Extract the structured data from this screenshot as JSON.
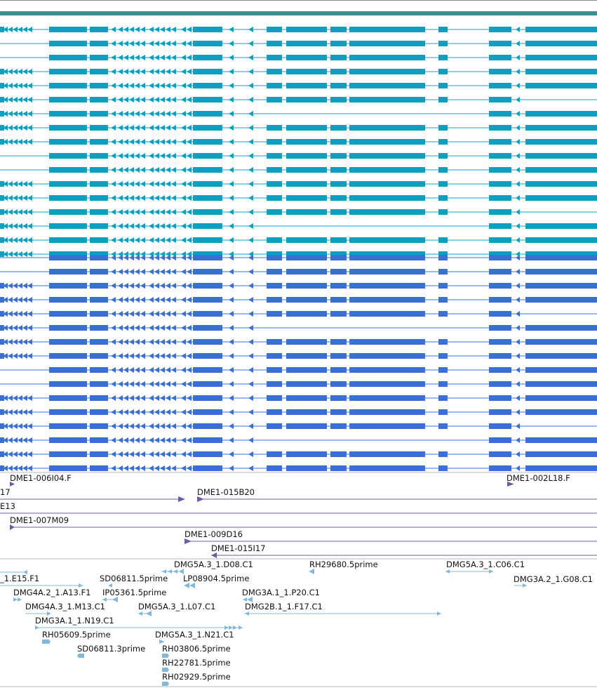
{
  "colors": {
    "top_bar": "#3d8f8f",
    "transcript_group_1": "#0aa0c0",
    "transcript_group_2": "#3a6fd4",
    "clone": "#7057b0",
    "est": "#82b8dc",
    "divider": "#b8b8b8"
  },
  "transcripts": {
    "group1_count": 17,
    "group2_count": 16
  },
  "clones": [
    {
      "label": "DME1-006I04.F"
    },
    {
      "label": "DME1-002L18.F"
    },
    {
      "label": "17"
    },
    {
      "label": "DME1-015B20"
    },
    {
      "label": "E13"
    },
    {
      "label": "DME1-007M09"
    },
    {
      "label": "DME1-009D16"
    },
    {
      "label": "DME1-015I17"
    }
  ],
  "ests": [
    {
      "label": "DMG5A.3_1.D08.C1"
    },
    {
      "label": "RH29680.5prime"
    },
    {
      "label": "DMG5A.3_1.C06.C1"
    },
    {
      "label": "_1.E15.F1"
    },
    {
      "label": "SD06811.5prime"
    },
    {
      "label": "LP08904.5prime"
    },
    {
      "label": "DMG3A.2_1.G08.C1"
    },
    {
      "label": "DMG4A.2_1.A13.F1"
    },
    {
      "label": "IP05361.5prime"
    },
    {
      "label": "DMG3A.1_1.P20.C1"
    },
    {
      "label": "DMG4A.3_1.M13.C1"
    },
    {
      "label": "DMG5A.3_1.L07.C1"
    },
    {
      "label": "DMG2B.1_1.F17.C1"
    },
    {
      "label": "DMG3A.1_1.N19.C1"
    },
    {
      "label": "RH05609.5prime"
    },
    {
      "label": "DMG5A.3_1.N21.C1"
    },
    {
      "label": "SD06811.3prime"
    },
    {
      "label": "RH03806.5prime"
    },
    {
      "label": "RH22781.5prime"
    },
    {
      "label": "RH02929.5prime"
    }
  ]
}
